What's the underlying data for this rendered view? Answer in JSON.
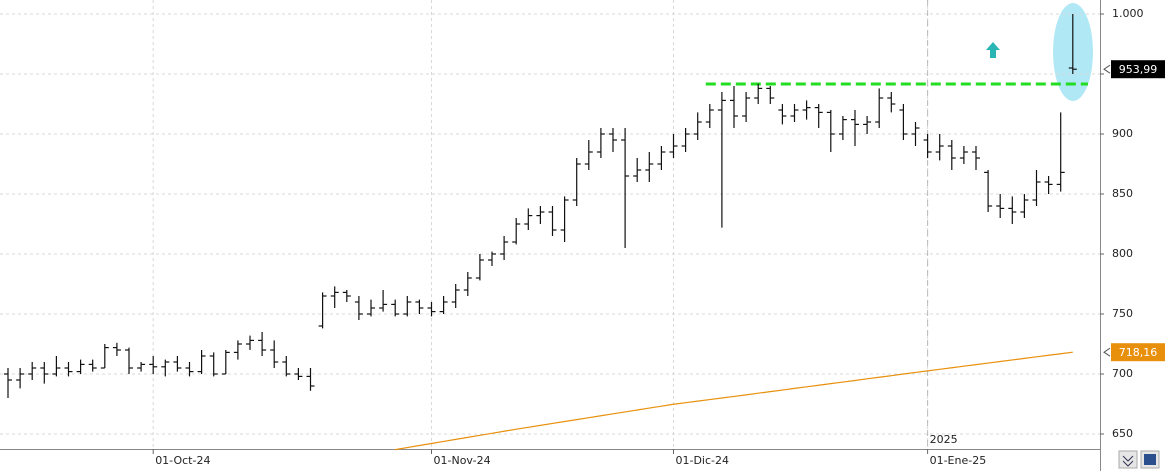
{
  "chart_data": {
    "type": "ohlc",
    "categories": [
      null,
      null,
      null,
      null,
      null,
      null,
      null,
      null,
      null,
      null,
      null,
      null,
      "01-Oct-24",
      null,
      null,
      null,
      null,
      null,
      null,
      null,
      null,
      null,
      null,
      null,
      null,
      null,
      null,
      null,
      null,
      null,
      null,
      null,
      null,
      null,
      null,
      "01-Nov-24",
      null,
      null,
      null,
      null,
      null,
      null,
      null,
      null,
      null,
      null,
      null,
      null,
      null,
      null,
      null,
      null,
      null,
      null,
      null,
      "01-Dic-24",
      null,
      null,
      null,
      null,
      null,
      null,
      null,
      null,
      null,
      null,
      null,
      null,
      null,
      null,
      null,
      null,
      null,
      null,
      null,
      null,
      "01-Ene-25",
      null,
      null,
      null,
      null,
      null,
      null,
      null,
      null,
      null,
      null,
      null,
      null
    ],
    "year_marker": {
      "category": 76,
      "label": "2025"
    },
    "ohlc": {
      "color": "#111111",
      "open": [
        700,
        695,
        700,
        705,
        700,
        705,
        702,
        708,
        705,
        722,
        720,
        705,
        708,
        706,
        710,
        705,
        702,
        715,
        700,
        718,
        725,
        728,
        720,
        710,
        700,
        698,
        740,
        765,
        768,
        760,
        750,
        755,
        758,
        750,
        760,
        755,
        752,
        760,
        770,
        780,
        795,
        800,
        810,
        825,
        832,
        835,
        820,
        845,
        875,
        885,
        900,
        895,
        865,
        870,
        875,
        885,
        890,
        900,
        910,
        920,
        928,
        915,
        930,
        938,
        920,
        915,
        920,
        922,
        918,
        900,
        912,
        908,
        910,
        930,
        920,
        900,
        895,
        885,
        890,
        880,
        885,
        868,
        840,
        838,
        835,
        845,
        860,
        858,
        955
      ],
      "high": [
        705,
        705,
        710,
        710,
        715,
        710,
        712,
        712,
        725,
        726,
        722,
        710,
        715,
        712,
        715,
        710,
        720,
        718,
        720,
        728,
        732,
        735,
        728,
        715,
        705,
        705,
        768,
        773,
        770,
        765,
        762,
        770,
        762,
        765,
        762,
        760,
        765,
        775,
        785,
        800,
        802,
        815,
        830,
        838,
        840,
        840,
        848,
        880,
        895,
        905,
        905,
        905,
        880,
        885,
        890,
        900,
        905,
        918,
        925,
        935,
        940,
        935,
        942,
        940,
        925,
        925,
        928,
        925,
        920,
        915,
        920,
        915,
        938,
        935,
        925,
        910,
        900,
        900,
        895,
        890,
        890,
        870,
        850,
        848,
        850,
        870,
        865,
        918,
        1000
      ],
      "low": [
        680,
        688,
        695,
        692,
        698,
        698,
        700,
        702,
        705,
        715,
        700,
        702,
        700,
        698,
        702,
        698,
        700,
        698,
        700,
        712,
        720,
        715,
        705,
        698,
        695,
        686,
        738,
        755,
        760,
        745,
        748,
        752,
        748,
        748,
        750,
        748,
        750,
        755,
        765,
        778,
        790,
        795,
        808,
        820,
        825,
        815,
        810,
        840,
        870,
        880,
        885,
        805,
        860,
        860,
        870,
        880,
        885,
        895,
        905,
        822,
        905,
        910,
        925,
        925,
        908,
        910,
        912,
        905,
        885,
        895,
        890,
        900,
        905,
        918,
        895,
        890,
        880,
        878,
        870,
        875,
        870,
        835,
        830,
        825,
        830,
        840,
        850,
        852,
        950
      ],
      "close": [
        695,
        700,
        705,
        700,
        705,
        702,
        708,
        705,
        722,
        720,
        705,
        708,
        706,
        710,
        705,
        702,
        715,
        700,
        718,
        725,
        728,
        720,
        710,
        700,
        698,
        690,
        765,
        768,
        765,
        750,
        755,
        758,
        750,
        760,
        755,
        752,
        760,
        770,
        780,
        795,
        800,
        810,
        825,
        832,
        835,
        820,
        845,
        875,
        885,
        900,
        895,
        865,
        870,
        875,
        885,
        890,
        900,
        910,
        920,
        928,
        915,
        930,
        938,
        930,
        915,
        920,
        922,
        918,
        900,
        912,
        908,
        910,
        930,
        925,
        900,
        905,
        885,
        890,
        880,
        885,
        880,
        840,
        838,
        835,
        845,
        860,
        858,
        868,
        953.99
      ],
      "last_label": {
        "value": 953.99,
        "label": "953,99"
      }
    },
    "moving_average": {
      "color": "#e8900c",
      "values": [
        null,
        null,
        null,
        null,
        null,
        null,
        null,
        null,
        null,
        null,
        null,
        null,
        null,
        null,
        null,
        null,
        null,
        null,
        null,
        null,
        null,
        null,
        null,
        null,
        null,
        null,
        null,
        null,
        null,
        null,
        null,
        null,
        637,
        638.7,
        640.4,
        642.1,
        643.8,
        645.5,
        647.2,
        648.9,
        650.6,
        652.3,
        654,
        655.6,
        657.2,
        658.8,
        660.4,
        662,
        663.6,
        665.2,
        666.8,
        668.4,
        670,
        671.6,
        673.2,
        674.8,
        676.1,
        677.4,
        678.7,
        680,
        681.3,
        682.6,
        684,
        685.3,
        686.6,
        688,
        689.3,
        690.6,
        692,
        693.3,
        694.6,
        696,
        697.3,
        698.6,
        700,
        701.3,
        702.6,
        703.9,
        705.2,
        706.5,
        707.8,
        709.1,
        710.4,
        711.7,
        713,
        714.3,
        715.6,
        716.9,
        718.16
      ],
      "last_label": {
        "value": 718.16,
        "label": "718,16"
      }
    },
    "hline": {
      "value": 941.7,
      "color": "#22dd22",
      "from_category": 58
    },
    "ylim": [
      637.5,
      1011.67
    ],
    "yticks": [
      650,
      700,
      750,
      800,
      850,
      900,
      950,
      {
        "value": 1000,
        "label": "1.000"
      }
    ],
    "grid": true
  }
}
